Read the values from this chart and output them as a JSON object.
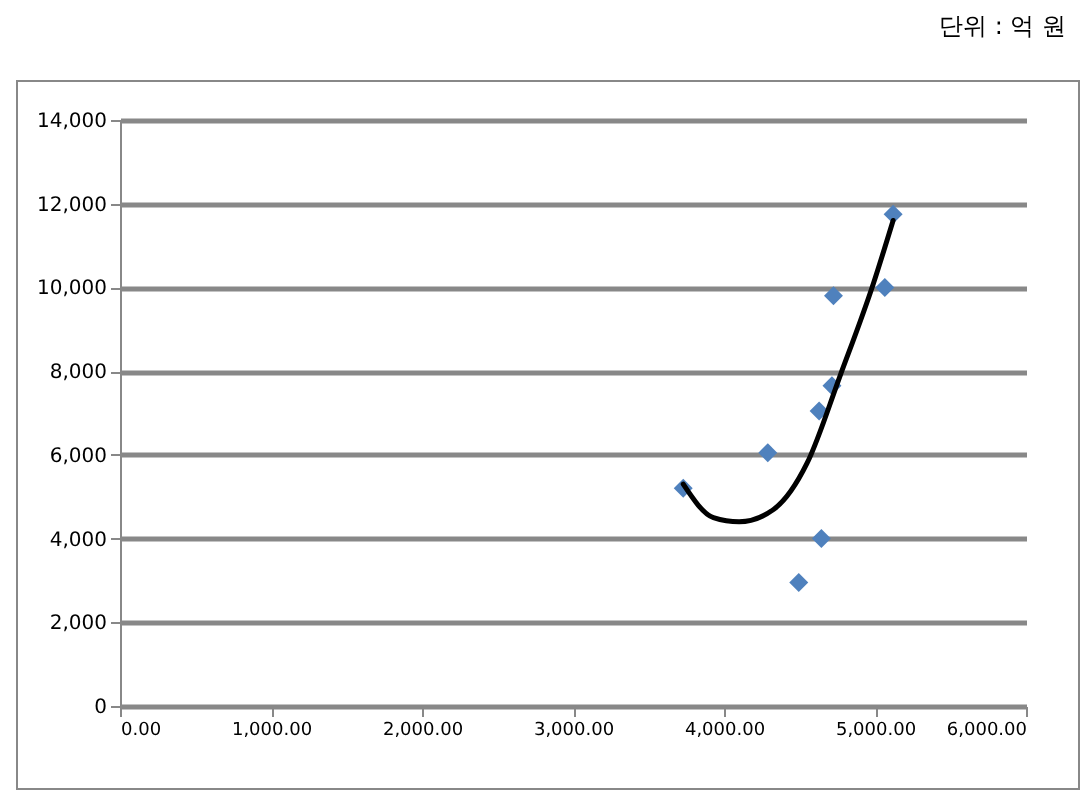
{
  "chart_data": {
    "type": "scatter",
    "annotations": [
      "단위 : 억 원"
    ],
    "xlim": [
      0,
      6000
    ],
    "xticks": [
      {
        "value": 0,
        "label": "0.00"
      },
      {
        "value": 1000,
        "label": "1,000.00"
      },
      {
        "value": 2000,
        "label": "2,000.00"
      },
      {
        "value": 3000,
        "label": "3,000.00"
      },
      {
        "value": 4000,
        "label": "4,000.00"
      },
      {
        "value": 5000,
        "label": "5,000.00"
      },
      {
        "value": 6000,
        "label": "6,000.00"
      }
    ],
    "ylim": [
      0,
      14000
    ],
    "yticks": [
      {
        "value": 0,
        "label": "0"
      },
      {
        "value": 2000,
        "label": "2,000"
      },
      {
        "value": 4000,
        "label": "4,000"
      },
      {
        "value": 6000,
        "label": "6,000"
      },
      {
        "value": 8000,
        "label": "8,000"
      },
      {
        "value": 10000,
        "label": "10,000"
      },
      {
        "value": 12000,
        "label": "12,000"
      },
      {
        "value": 14000,
        "label": "14,000"
      }
    ],
    "grid": "y",
    "series": [
      {
        "marker": "diamond",
        "color": "#4f81bd",
        "x": [
          3730,
          4290,
          4630,
          4715,
          4725,
          5065,
          5120,
          4645,
          4495
        ],
        "values": [
          5200,
          6050,
          7050,
          7650,
          9800,
          10000,
          11750,
          4000,
          2950
        ]
      },
      {
        "type": "line",
        "color": "#000000",
        "line_style": "solid",
        "x": [
          3730,
          3930,
          4100,
          4330,
          4550,
          4770,
          4990,
          5120
        ],
        "values": [
          5300,
          4500,
          4400,
          4700,
          5800,
          7900,
          10100,
          11600
        ]
      }
    ]
  }
}
